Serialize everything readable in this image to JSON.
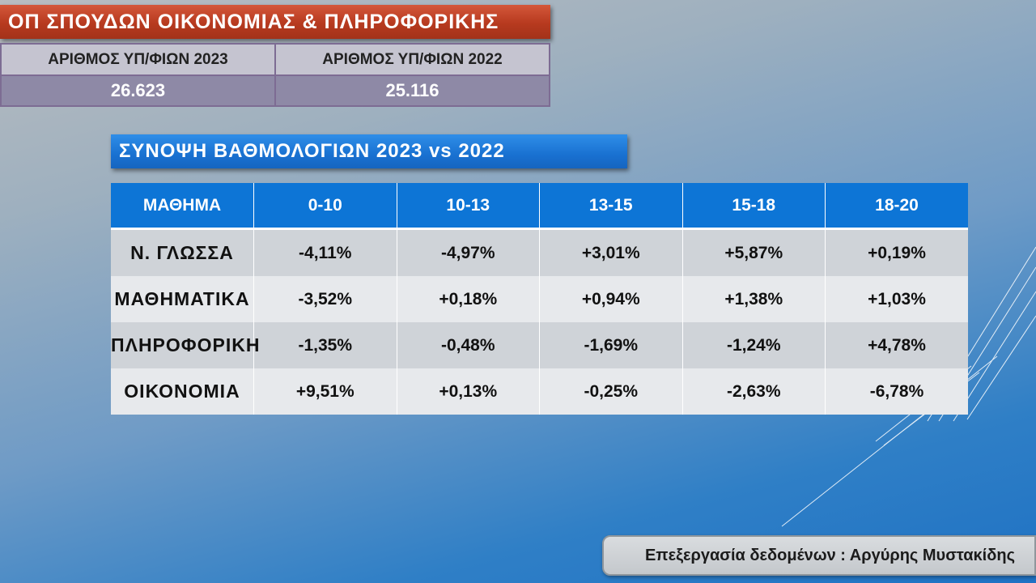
{
  "header": {
    "title": "ΟΠ ΣΠΟΥΔΩΝ ΟΙΚΟΝΟΜΙΑΣ & ΠΛΗΡΟΦΟΡΙΚΗΣ"
  },
  "candidates": {
    "label_2023": "ΑΡΙΘΜΟΣ ΥΠ/ΦΙΩΝ 2023",
    "label_2022": "ΑΡΙΘΜΟΣ ΥΠ/ΦΙΩΝ 2022",
    "value_2023": "26.623",
    "value_2022": "25.116"
  },
  "summary": {
    "title": "ΣΥΝΟΨΗ ΒΑΘΜΟΛΟΓΙΩΝ 2023 vs 2022",
    "columns": [
      "ΜΑΘΗΜΑ",
      "0-10",
      "10-13",
      "13-15",
      "15-18",
      "18-20"
    ],
    "rows": [
      {
        "subject": "Ν. ΓΛΩΣΣΑ",
        "values": [
          "-4,11%",
          "-4,97%",
          "+3,01%",
          "+5,87%",
          "+0,19%"
        ]
      },
      {
        "subject": "ΜΑΘΗΜΑΤΙΚΑ",
        "values": [
          "-3,52%",
          "+0,18%",
          "+0,94%",
          "+1,38%",
          "+1,03%"
        ]
      },
      {
        "subject": "ΠΛΗΡΟΦΟΡΙΚΗ",
        "values": [
          "-1,35%",
          "-0,48%",
          "-1,69%",
          "-1,24%",
          "+4,78%"
        ]
      },
      {
        "subject": "ΟΙΚΟΝΟΜΙΑ",
        "values": [
          "+9,51%",
          "+0,13%",
          "-0,25%",
          "-2,63%",
          "-6,78%"
        ]
      }
    ]
  },
  "footer": {
    "credit": "Επεξεργασία δεδομένων : Αργύρης Μυστακίδης"
  },
  "colors": {
    "title_accent": "#b73a1f",
    "header_blue": "#0d75d6",
    "count_row": "#8e89a6"
  }
}
